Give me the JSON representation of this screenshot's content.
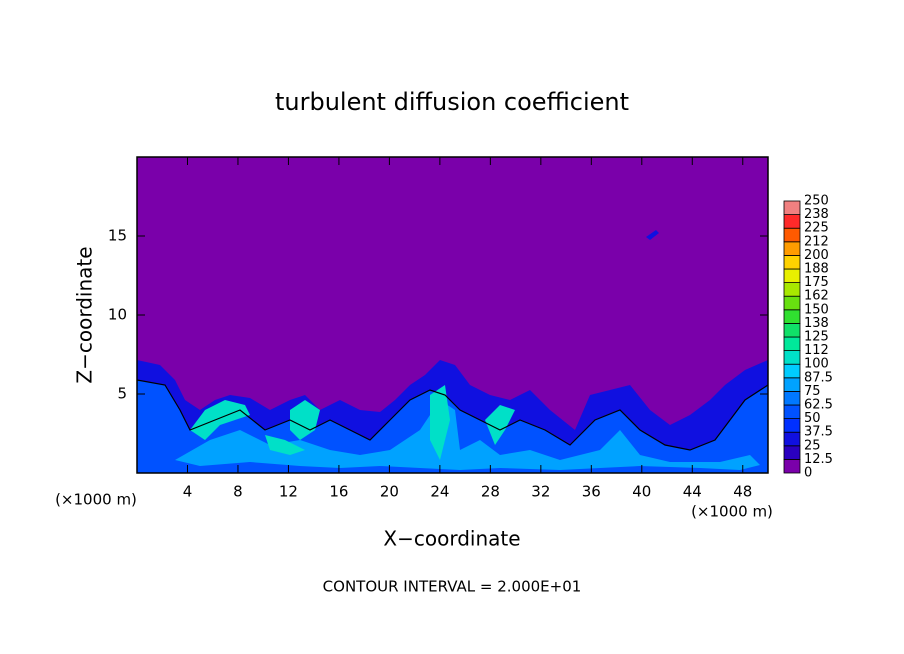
{
  "chart_data": {
    "type": "contour",
    "title": "turbulent diffusion coefficient",
    "xlabel": "X−coordinate",
    "ylabel": "Z−coordinate",
    "x_unit_label": "(×1000 m)",
    "annotation": "CONTOUR INTERVAL = 2.000E+01",
    "xlim": [
      0,
      50
    ],
    "xticks": [
      4,
      8,
      12,
      16,
      20,
      24,
      28,
      32,
      36,
      40,
      44,
      48
    ],
    "ylim": [
      0,
      20
    ],
    "yticks": [
      5,
      10,
      15
    ],
    "colorbar": {
      "levels": [
        0,
        12.5,
        25,
        37.5,
        50,
        62.5,
        75,
        87.5,
        100,
        112,
        125,
        138,
        150,
        162,
        175,
        188,
        200,
        212,
        225,
        238,
        250
      ],
      "colors": [
        "#7a00aa",
        "#2a00c0",
        "#1010e0",
        "#0030ff",
        "#0052ff",
        "#0078ff",
        "#00a2ff",
        "#00ccff",
        "#00e0c8",
        "#00e89a",
        "#10e068",
        "#30e030",
        "#68e010",
        "#a8e800",
        "#e8f000",
        "#ffd200",
        "#ff9c00",
        "#ff5a00",
        "#ff2a2a",
        "#f08080"
      ]
    }
  }
}
